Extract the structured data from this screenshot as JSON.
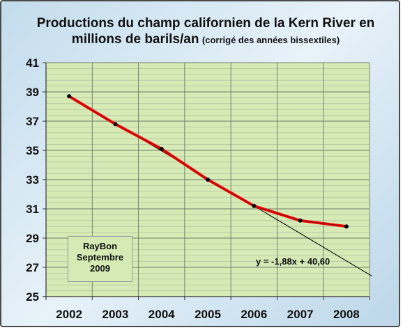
{
  "chart_data": {
    "type": "line",
    "title_line1": "Productions du champ californien de la Kern River en",
    "title_line2": "millions de barils/an",
    "title_note": "(corrigé des années bissextiles)",
    "x": [
      "2002",
      "2003",
      "2004",
      "2005",
      "2006",
      "2007",
      "2008"
    ],
    "series": [
      {
        "values": [
          38.7,
          36.8,
          35.1,
          33.0,
          31.2,
          30.2,
          29.8
        ],
        "color": "#ff0000",
        "marker": "black-dot"
      }
    ],
    "trendline": {
      "label": "y = -1,88x + 40,60",
      "slope": -1.88,
      "intercept": 40.6,
      "x_index_range": [
        1,
        7.55
      ],
      "color": "#000000"
    },
    "ylim": [
      25,
      41
    ],
    "yticks": [
      "25",
      "27",
      "29",
      "31",
      "33",
      "35",
      "37",
      "39",
      "41"
    ],
    "grid": true,
    "plot_background": "#d5eab5",
    "annotation": {
      "line1": "RayBon",
      "line2": "Septembre",
      "line3": "2009"
    }
  }
}
